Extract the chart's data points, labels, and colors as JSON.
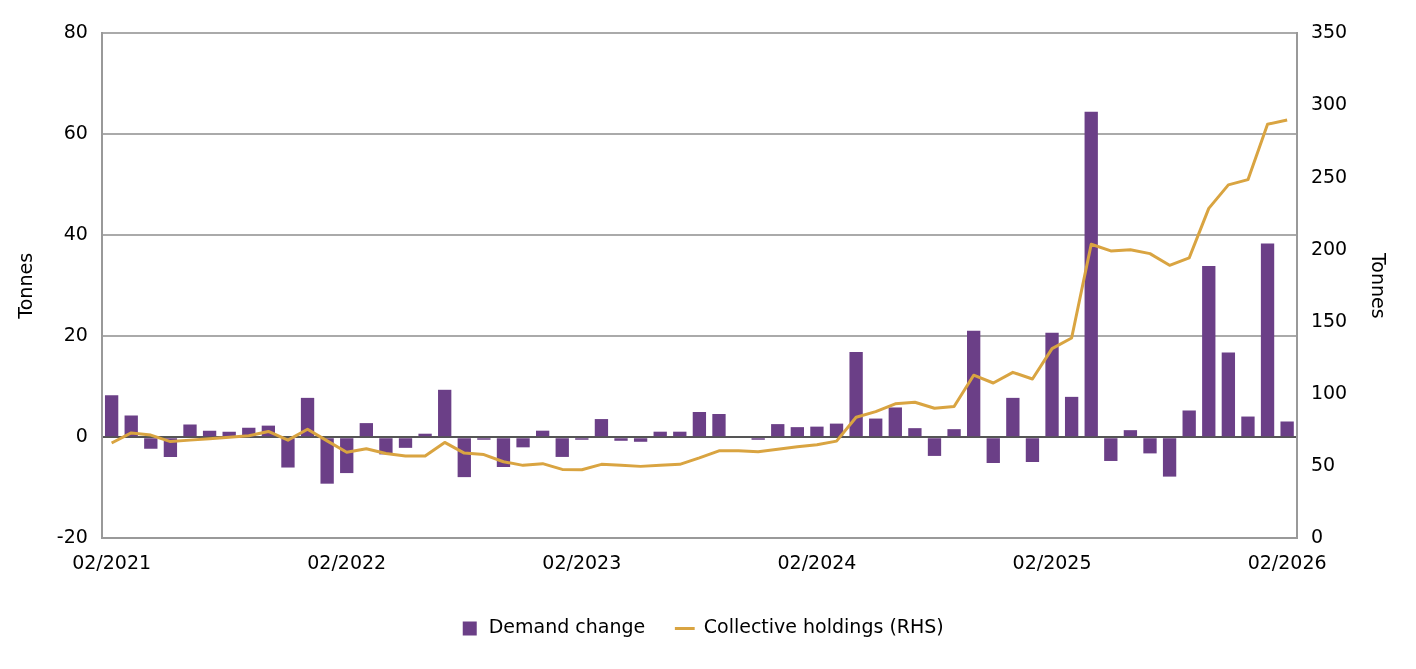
{
  "chart_data": {
    "type": "bar",
    "ylabel": "Tonnes",
    "y2label": "Tonnes",
    "categories": [
      "02/2021",
      null,
      null,
      null,
      null,
      null,
      null,
      null,
      null,
      null,
      null,
      null,
      "02/2022",
      null,
      null,
      null,
      null,
      null,
      null,
      null,
      null,
      null,
      null,
      null,
      "02/2023",
      null,
      null,
      null,
      null,
      null,
      null,
      null,
      null,
      null,
      null,
      null,
      "02/2024",
      null,
      null,
      null,
      null,
      null,
      null,
      null,
      null,
      null,
      null,
      null,
      "02/2025",
      null,
      null,
      null,
      null,
      null,
      null,
      null,
      null,
      null,
      null,
      null,
      "02/2026"
    ],
    "series": [
      {
        "name": "Demand change",
        "color": "#6b3f87",
        "values": [
          8.3,
          4.3,
          -2.3,
          -3.9,
          2.5,
          1.3,
          1.1,
          1.9,
          2.3,
          -6.0,
          7.8,
          -9.2,
          -7.1,
          2.8,
          -3.4,
          -2.1,
          0.7,
          9.4,
          -7.9,
          -0.5,
          -5.9,
          -2.0,
          1.3,
          -3.9,
          -0.5,
          3.6,
          -0.7,
          -0.9,
          1.1,
          1.1,
          5.0,
          4.6,
          0,
          -0.5,
          2.6,
          2.0,
          2.1,
          2.7,
          16.9,
          3.7,
          5.9,
          1.8,
          -3.7,
          1.6,
          21.1,
          -5.1,
          7.8,
          -4.9,
          20.7,
          8.0,
          64.5,
          -4.7,
          1.4,
          -3.2,
          -7.8,
          5.3,
          33.9,
          16.8,
          4.1,
          38.4,
          3.1
        ]
      },
      {
        "name": "Collective holdings (RHS)",
        "type": "line",
        "axis": "y2",
        "color": "#d9a441",
        "values": [
          66,
          73,
          71.5,
          67,
          68,
          69,
          70,
          71,
          74,
          68,
          75.5,
          67.5,
          59.6,
          62,
          58.7,
          57,
          57,
          66.4,
          59,
          58,
          53,
          50.5,
          51.7,
          47.7,
          47.5,
          51.2,
          50.5,
          49.8,
          50.5,
          51.2,
          55.7,
          60.6,
          60.6,
          59.9,
          61.7,
          63.4,
          64.8,
          67.3,
          83.9,
          87.8,
          93.2,
          94.3,
          90.1,
          91.3,
          113,
          107.6,
          115,
          110.4,
          131.4,
          138.8,
          203.8,
          199.2,
          200,
          197.3,
          189.2,
          194.3,
          228.7,
          245,
          248.6,
          287,
          290
        ]
      }
    ],
    "ylim": [
      -20,
      80
    ],
    "yticks": [
      -20,
      0,
      20,
      40,
      60,
      80
    ],
    "y2lim": [
      0,
      350
    ],
    "y2ticks": [
      0,
      50,
      100,
      150,
      200,
      250,
      300,
      350
    ],
    "grid": "y",
    "legend": "bottom",
    "marker": "none"
  }
}
